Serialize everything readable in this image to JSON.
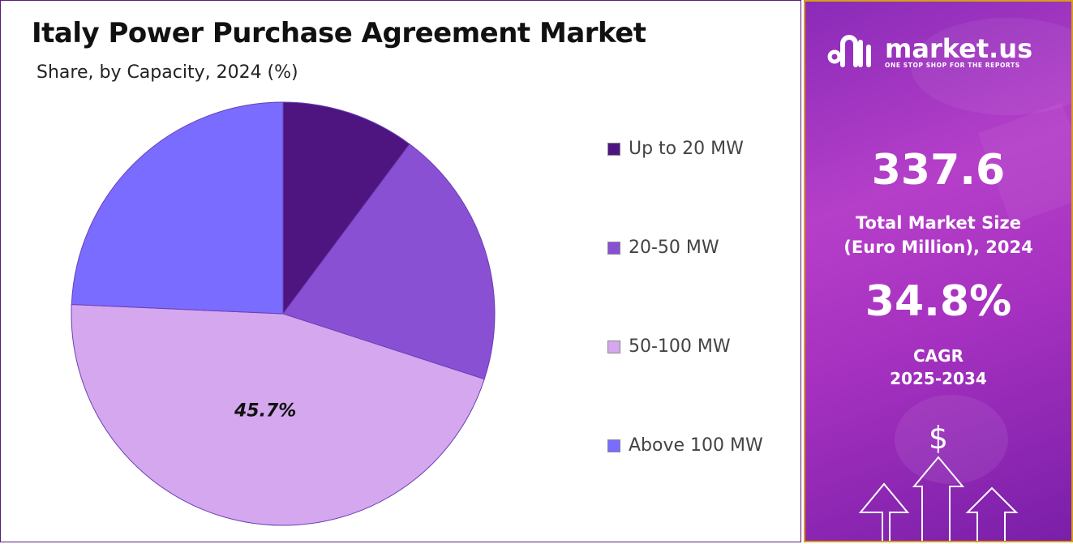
{
  "title": "Italy Power Purchase Agreement Market",
  "subtitle": "Share, by Capacity, 2024 (%)",
  "chart_data": {
    "type": "pie",
    "categories": [
      "Up to 20 MW",
      "20-50 MW",
      "50-100 MW",
      "Above 100 MW"
    ],
    "values": [
      10.2,
      19.8,
      45.7,
      24.3
    ],
    "colors": [
      "#4e1580",
      "#8a50d3",
      "#d4a7ef",
      "#7a6cff"
    ],
    "data_labels": [
      {
        "category": "50-100 MW",
        "text": "45.7%"
      }
    ],
    "legend_position": "right"
  },
  "sidebar": {
    "brand": "market.us",
    "tagline": "ONE STOP SHOP FOR THE REPORTS",
    "market_size_value": "337.6",
    "market_size_label_1": "Total Market Size",
    "market_size_label_2": "(Euro Million), 2024",
    "cagr_value": "34.8%",
    "cagr_label_1": "CAGR",
    "cagr_label_2": "2025-2034",
    "dollar_symbol": "$"
  }
}
